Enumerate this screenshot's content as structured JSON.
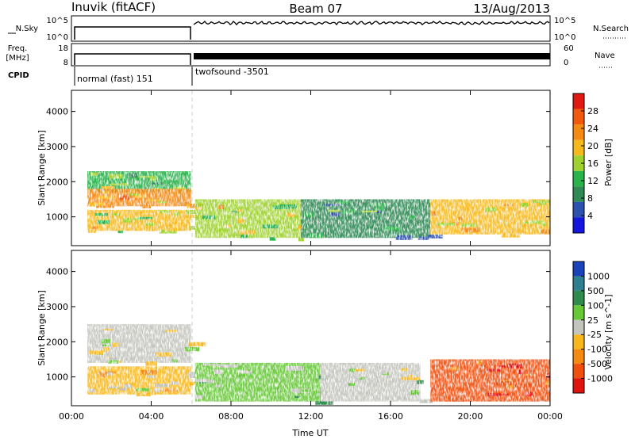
{
  "header": {
    "station": "Inuvik (fitACF)",
    "beam": "Beam 07",
    "date": "13/Aug/2013"
  },
  "panels": {
    "nsky": {
      "left_label": "N.Sky",
      "left_ticks": [
        "10^5",
        "10^0"
      ],
      "right_label": "N.Search",
      "right_ticks": [
        "10^5",
        "10^0"
      ]
    },
    "freq": {
      "left_label_1": "Freq.",
      "left_label_2": "[MHz]",
      "left_ticks": [
        "18",
        "8"
      ],
      "right_label": "Nave",
      "right_ticks": [
        "60",
        "0"
      ]
    },
    "cpid": {
      "label": "CPID",
      "modes": [
        "normal (fast) 151",
        "twofsound -3501"
      ]
    }
  },
  "colors": {
    "power": [
      "#1515e0",
      "#2c51ae",
      "#2f8a55",
      "#29b34a",
      "#9fd12f",
      "#f6b91c",
      "#f48a12",
      "#f15a0c",
      "#e01a10"
    ],
    "velocity": [
      "#1843b9",
      "#2e7f8f",
      "#2f8c4d",
      "#66c836",
      "#c4c4be",
      "#f8b81c",
      "#f48a12",
      "#f0500e",
      "#e0140f"
    ]
  },
  "chart_data": [
    {
      "type": "heatmap",
      "title": "",
      "xlabel": "",
      "ylabel": "Slant Range [km]",
      "colorbar_label": "Power [dB]",
      "colorbar_ticks": [
        "28",
        "24",
        "20",
        "16",
        "12",
        "8",
        "4"
      ],
      "x_ticks": [
        "00:00",
        "04:00",
        "08:00",
        "12:00",
        "16:00",
        "20:00",
        "00:00"
      ],
      "y_ticks": [
        "4000",
        "3000",
        "2000",
        "1000"
      ],
      "xlim": [
        0,
        24
      ],
      "ylim": [
        180,
        4600
      ],
      "clim": [
        0,
        32
      ],
      "regions": [
        {
          "t": [
            0.8,
            6.0
          ],
          "r": [
            1700,
            2300
          ],
          "value": 14
        },
        {
          "t": [
            0.8,
            6.0
          ],
          "r": [
            1300,
            1800
          ],
          "value": 22
        },
        {
          "t": [
            0.8,
            6.0
          ],
          "r": [
            600,
            1200
          ],
          "value": 18
        },
        {
          "t": [
            6.2,
            11.5
          ],
          "r": [
            400,
            1500
          ],
          "value": 17
        },
        {
          "t": [
            11.5,
            18.0
          ],
          "r": [
            400,
            1500
          ],
          "value": 10
        },
        {
          "t": [
            18.0,
            24.0
          ],
          "r": [
            500,
            1500
          ],
          "value": 20
        }
      ]
    },
    {
      "type": "heatmap",
      "title": "",
      "xlabel": "Time UT",
      "ylabel": "Slant Range [km]",
      "colorbar_label": "Velocity [m s^-1]",
      "colorbar_ticks": [
        "1000",
        "500",
        "100",
        "25",
        "-25",
        "-100",
        "-500",
        "-1000"
      ],
      "x_ticks": [
        "00:00",
        "04:00",
        "08:00",
        "12:00",
        "16:00",
        "20:00",
        "00:00"
      ],
      "y_ticks": [
        "4000",
        "3000",
        "2000",
        "1000"
      ],
      "xlim": [
        0,
        24
      ],
      "ylim": [
        180,
        4600
      ],
      "clim": [
        -1000,
        1000
      ],
      "regions": [
        {
          "t": [
            0.8,
            6.0
          ],
          "r": [
            1400,
            2500
          ],
          "value": 0
        },
        {
          "t": [
            0.8,
            6.0
          ],
          "r": [
            500,
            1300
          ],
          "value": -150
        },
        {
          "t": [
            6.2,
            12.5
          ],
          "r": [
            300,
            1400
          ],
          "value": 200
        },
        {
          "t": [
            12.5,
            17.5
          ],
          "r": [
            300,
            1400
          ],
          "value": 80
        },
        {
          "t": [
            18.0,
            24.0
          ],
          "r": [
            300,
            1500
          ],
          "value": -700
        }
      ]
    }
  ]
}
